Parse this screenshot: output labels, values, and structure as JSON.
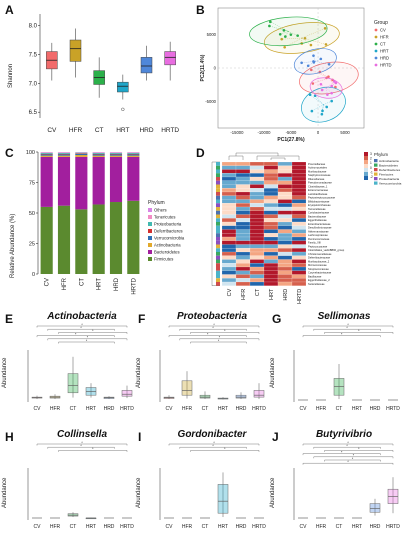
{
  "panels": {
    "A": {
      "label": "A",
      "ylabel": "Shannon",
      "yticks": [
        "8.0",
        "7.5",
        "7.0",
        "6.5"
      ],
      "groups": [
        "CV",
        "HFR",
        "CT",
        "HRT",
        "HRD",
        "HRTD"
      ]
    },
    "B": {
      "label": "B",
      "xlabel": "PC1(27.8%)",
      "ylabel": "PC2(11.4%)",
      "xticks": [
        "-15000",
        "-10000",
        "-5000",
        "0",
        "5000"
      ],
      "yticks": [
        "5000",
        "0",
        "-5000"
      ],
      "legend_title": "Group",
      "legend": [
        "CV",
        "HFR",
        "CT",
        "HRT",
        "HRD",
        "HRTD"
      ]
    },
    "C": {
      "label": "C",
      "ylabel": "Relative Abundance (%)",
      "yticks": [
        "100",
        "75",
        "50",
        "25",
        "0"
      ],
      "groups": [
        "CV",
        "HFR",
        "CT",
        "HRT",
        "HRD",
        "HRTD"
      ],
      "legend_title": "Phylum",
      "legend": [
        "Others",
        "Tenericutes",
        "Proteobacteria",
        "Deferribacteres",
        "Verrucomicrobia",
        "Actinobacteria",
        "Bacteroidetes",
        "Firmicutes"
      ]
    },
    "D": {
      "label": "D",
      "columns": [
        "CV",
        "HFR",
        "CT",
        "HRT",
        "HRD",
        "HRTD"
      ],
      "legend_title": "Phylum",
      "legend": [
        "Actinobacteria",
        "Bacteroidetes",
        "Deferribacteres",
        "Firmicutes",
        "Proteobacteria",
        "Verrucomicrobia"
      ],
      "scale": [
        "3",
        "2",
        "1",
        "0",
        "-1",
        "-2"
      ],
      "rows": [
        "Prevotellaceae",
        "Actinomycetales",
        "Muribaculaceae",
        "Staphylococcaceae",
        "Rikenellaceae",
        "Pseudomonadaceae",
        "Clostridiaceae_1",
        "Enterococcaceae",
        "Lactobacillaceae",
        "Peptostreptococcaceae",
        "Bifidobacteriaceae",
        "Erysipelotrichaceae",
        "Tannerellaceae",
        "Coriobacteriaceae",
        "Bacteroidaceae",
        "Eggerthellaceae",
        "Enterobacteriaceae",
        "Desulfovibrionaceae",
        "Akkermansiaceae",
        "Lachnospiraceae",
        "Ruminococcaceae",
        "Family_XIII",
        "Peptococcaceae",
        "Clostridiales_vadinBB60_group",
        "Christensenellaceae",
        "Deferribacteraceae",
        "Muribaculaceae_2",
        "Micrococcaceae",
        "Streptococcaceae",
        "Corynebacteriaceae",
        "Bacillaceae",
        "Eggerthellaceae_2",
        "Sutterellaceae"
      ]
    },
    "E": {
      "label": "E",
      "title": "Actinobacteria",
      "ylabel": "Abundance",
      "groups": [
        "CV",
        "HFR",
        "CT",
        "HRT",
        "HRD",
        "HRTD"
      ]
    },
    "F": {
      "label": "F",
      "title": "Proteobacteria",
      "ylabel": "Abundance",
      "groups": [
        "CV",
        "HFR",
        "CT",
        "HRT",
        "HRD",
        "HRTD"
      ]
    },
    "G": {
      "label": "G",
      "title": "Sellimonas",
      "ylabel": "Abundance",
      "groups": [
        "CV",
        "HFR",
        "CT",
        "HRT",
        "HRD",
        "HRTD"
      ]
    },
    "H": {
      "label": "H",
      "title": "Collinsella",
      "ylabel": "Abundance",
      "groups": [
        "CV",
        "HFR",
        "CT",
        "HRT",
        "HRD",
        "HRTD"
      ]
    },
    "I": {
      "label": "I",
      "title": "Gordonibacter",
      "ylabel": "Abundance",
      "groups": [
        "CV",
        "HFR",
        "CT",
        "HRT",
        "HRD",
        "HRTD"
      ]
    },
    "J": {
      "label": "J",
      "title": "Butyrivibrio",
      "ylabel": "Abundance",
      "groups": [
        "CV",
        "HFR",
        "CT",
        "HRT",
        "HRD",
        "HRTD"
      ]
    }
  },
  "colors": {
    "CV": "#f26b6b",
    "HFR": "#c9a227",
    "CT": "#2bb04a",
    "HRT": "#1fa6c9",
    "HRD": "#4f87d9",
    "HRTD": "#e86de0"
  },
  "chart_data": [
    {
      "type": "box",
      "panel": "A",
      "categories": [
        "CV",
        "HFR",
        "CT",
        "HRT",
        "HRD",
        "HRTD"
      ],
      "boxes": [
        [
          7.05,
          7.25,
          7.4,
          7.55,
          7.7
        ],
        [
          7.1,
          7.38,
          7.6,
          7.75,
          7.95
        ],
        [
          6.75,
          6.98,
          7.1,
          7.22,
          7.45
        ],
        [
          6.72,
          6.85,
          6.95,
          7.02,
          7.15
        ],
        [
          7.05,
          7.18,
          7.3,
          7.45,
          7.65
        ],
        [
          7.05,
          7.32,
          7.45,
          7.55,
          7.72
        ]
      ],
      "ylim": [
        6.4,
        8.2
      ]
    },
    {
      "type": "bar",
      "panel": "C",
      "stacked": true,
      "categories": [
        "CV",
        "HFR",
        "CT",
        "HRT",
        "HRD",
        "HRTD"
      ],
      "series": [
        {
          "name": "Firmicutes",
          "values": [
            55,
            56,
            53,
            57,
            59,
            60
          ]
        },
        {
          "name": "Bacteroidetes",
          "values": [
            41,
            40,
            43,
            39,
            37,
            36
          ]
        },
        {
          "name": "Actinobacteria",
          "values": [
            1,
            1,
            1.5,
            1,
            1,
            1
          ]
        },
        {
          "name": "Verrucomicrobia",
          "values": [
            1,
            1,
            1,
            1,
            1,
            1
          ]
        },
        {
          "name": "Deferribacteres",
          "values": [
            0.5,
            0.5,
            0.5,
            0.5,
            0.5,
            0.5
          ]
        },
        {
          "name": "Proteobacteria",
          "values": [
            0.8,
            0.8,
            0.5,
            0.8,
            0.8,
            0.8
          ]
        },
        {
          "name": "Tenericutes",
          "values": [
            0.4,
            0.4,
            0.3,
            0.4,
            0.4,
            0.4
          ]
        },
        {
          "name": "Others",
          "values": [
            0.3,
            0.3,
            0.2,
            0.3,
            0.3,
            0.3
          ]
        }
      ],
      "ylim": [
        0,
        100
      ]
    },
    {
      "type": "box",
      "panel": "E",
      "categories": [
        "CV",
        "HFR",
        "CT",
        "HRT",
        "HRD",
        "HRTD"
      ],
      "boxes": [
        [
          0.02,
          0.04,
          0.05,
          0.06,
          0.09
        ],
        [
          0.02,
          0.04,
          0.06,
          0.08,
          0.12
        ],
        [
          0.05,
          0.15,
          0.3,
          0.55,
          0.9
        ],
        [
          0.05,
          0.1,
          0.18,
          0.26,
          0.35
        ],
        [
          0.02,
          0.03,
          0.05,
          0.06,
          0.08
        ],
        [
          0.04,
          0.08,
          0.12,
          0.2,
          0.3
        ]
      ],
      "ylim": [
        0,
        1
      ]
    },
    {
      "type": "box",
      "panel": "F",
      "categories": [
        "CV",
        "HFR",
        "CT",
        "HRT",
        "HRD",
        "HRTD"
      ],
      "boxes": [
        [
          0.02,
          0.03,
          0.05,
          0.06,
          0.1
        ],
        [
          0.03,
          0.1,
          0.2,
          0.4,
          0.6
        ],
        [
          0.02,
          0.04,
          0.06,
          0.1,
          0.18
        ],
        [
          0.01,
          0.02,
          0.03,
          0.04,
          0.06
        ],
        [
          0.02,
          0.04,
          0.06,
          0.1,
          0.16
        ],
        [
          0.02,
          0.06,
          0.1,
          0.2,
          0.35
        ]
      ],
      "ylim": [
        0,
        1
      ]
    },
    {
      "type": "box",
      "panel": "G",
      "categories": [
        "CV",
        "HFR",
        "CT",
        "HRT",
        "HRD",
        "HRTD"
      ],
      "boxes": [
        [
          0,
          0,
          0,
          0,
          0
        ],
        [
          0,
          0,
          0,
          0,
          0
        ],
        [
          0.02,
          0.1,
          0.28,
          0.45,
          0.75
        ],
        [
          0,
          0,
          0,
          0,
          0
        ],
        [
          0,
          0,
          0,
          0,
          0
        ],
        [
          0,
          0,
          0,
          0,
          0
        ]
      ],
      "ylim": [
        0,
        1
      ]
    },
    {
      "type": "box",
      "panel": "H",
      "categories": [
        "CV",
        "HFR",
        "CT",
        "HRT",
        "HRD",
        "HRTD"
      ],
      "boxes": [
        [
          0,
          0,
          0,
          0,
          0
        ],
        [
          0,
          0,
          0,
          0,
          0
        ],
        [
          0.02,
          0.04,
          0.06,
          0.09,
          0.12
        ],
        [
          0,
          0,
          0,
          0,
          0.01
        ],
        [
          0,
          0,
          0,
          0,
          0
        ],
        [
          0,
          0,
          0,
          0,
          0
        ]
      ],
      "ylim": [
        0,
        1
      ]
    },
    {
      "type": "box",
      "panel": "I",
      "categories": [
        "CV",
        "HFR",
        "CT",
        "HRT",
        "HRD",
        "HRTD"
      ],
      "boxes": [
        [
          0,
          0,
          0,
          0,
          0
        ],
        [
          0,
          0,
          0,
          0,
          0
        ],
        [
          0,
          0,
          0,
          0,
          0
        ],
        [
          0.02,
          0.1,
          0.35,
          0.7,
          0.95
        ],
        [
          0,
          0,
          0,
          0,
          0
        ],
        [
          0,
          0,
          0,
          0,
          0
        ]
      ],
      "ylim": [
        0,
        1
      ]
    },
    {
      "type": "box",
      "panel": "J",
      "categories": [
        "CV",
        "HFR",
        "CT",
        "HRT",
        "HRD",
        "HRTD"
      ],
      "boxes": [
        [
          0,
          0,
          0,
          0,
          0
        ],
        [
          0,
          0,
          0,
          0,
          0
        ],
        [
          0,
          0,
          0,
          0,
          0
        ],
        [
          0,
          0,
          0,
          0,
          0
        ],
        [
          0.05,
          0.12,
          0.2,
          0.3,
          0.4
        ],
        [
          0.1,
          0.3,
          0.45,
          0.6,
          0.85
        ]
      ],
      "ylim": [
        0,
        1
      ]
    }
  ]
}
